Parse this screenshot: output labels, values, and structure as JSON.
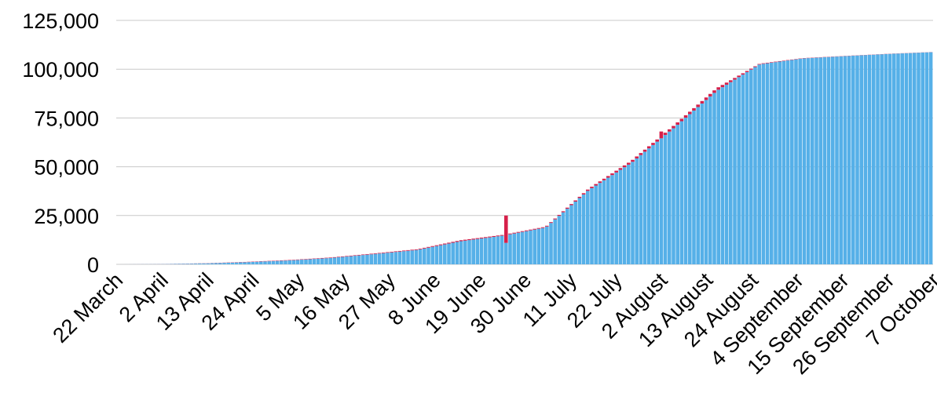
{
  "chart_data": {
    "type": "bar",
    "title": "",
    "xlabel": "",
    "ylabel": "",
    "grid": true,
    "legend": "none",
    "ylim": [
      0,
      125000
    ],
    "yticks": [
      0,
      25000,
      50000,
      75000,
      100000,
      125000
    ],
    "ytick_labels": [
      "0",
      "25,000",
      "50,000",
      "75,000",
      "100,000",
      "125,000"
    ],
    "xtick_labels": [
      "22 March",
      "2 April",
      "13 April",
      "24 April",
      "5 May",
      "16 May",
      "27 May",
      "8 June",
      "19 June",
      "30 June",
      "11 July",
      "22 July",
      "2 August",
      "13 August",
      "24 August",
      "4 September",
      "15 September",
      "26 September",
      "7 October"
    ],
    "colors": {
      "main": "#56b0e8",
      "top": "#d6204a",
      "grid": "#c8c8c8"
    },
    "series": [
      {
        "values": [
          0,
          100,
          450,
          1100,
          2000,
          3300,
          5300,
          7400,
          11800,
          14700,
          18900,
          38000,
          52000,
          70000,
          89000,
          102500,
          105500,
          106700,
          107800,
          108700
        ]
      },
      {
        "values": [
          0,
          30,
          80,
          150,
          200,
          250,
          300,
          350,
          500,
          400,
          400,
          700,
          1000,
          1200,
          1300,
          300,
          150,
          100,
          80,
          60
        ]
      }
    ],
    "annotations": [
      {
        "x": "28 June",
        "top_series_value": 14000
      },
      {
        "x": "6 August",
        "top_series_value": 3500
      }
    ]
  }
}
